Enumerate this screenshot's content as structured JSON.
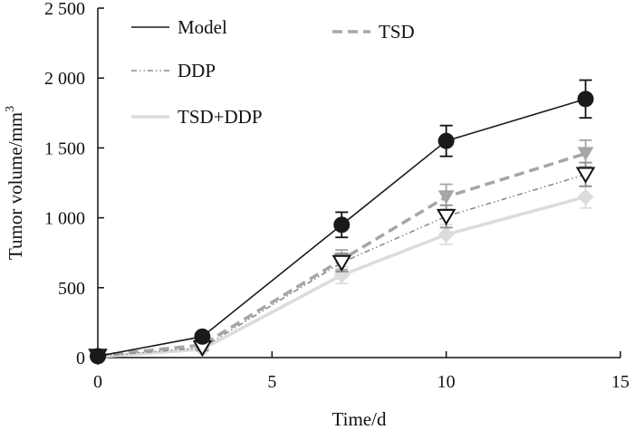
{
  "chart_data": {
    "type": "line",
    "title": "",
    "xlabel": "Time/d",
    "ylabel": "Tumor volume/mm",
    "ylabel_superscript": "3",
    "xlim": [
      0,
      15
    ],
    "ylim": [
      0,
      2500
    ],
    "xticks": [
      0,
      5,
      10,
      15
    ],
    "xtick_labels": [
      "0",
      "5",
      "10",
      "15"
    ],
    "yticks": [
      0,
      500,
      1000,
      1500,
      2000,
      2500
    ],
    "ytick_labels": [
      "0",
      "500",
      "1 000",
      "1 500",
      "2 000",
      "2 500"
    ],
    "grid": false,
    "legend_position": "top-left",
    "series": [
      {
        "name": "Model",
        "x": [
          0,
          3,
          7,
          10,
          14
        ],
        "values": [
          10,
          150,
          950,
          1550,
          1850
        ],
        "errors": [
          15,
          25,
          90,
          110,
          135
        ],
        "color": "#1a1a1a",
        "line_style": "solid",
        "marker": "circle"
      },
      {
        "name": "TSD",
        "x": [
          0,
          3,
          7,
          10,
          14
        ],
        "values": [
          15,
          90,
          700,
          1150,
          1460
        ],
        "errors": [
          15,
          20,
          70,
          90,
          95
        ],
        "color": "#a6a6a6",
        "line_style": "dashed",
        "marker": "triangle-down"
      },
      {
        "name": "DDP",
        "x": [
          0,
          3,
          7,
          10,
          14
        ],
        "values": [
          10,
          70,
          680,
          1010,
          1310
        ],
        "errors": [
          15,
          20,
          65,
          80,
          85
        ],
        "color": "#8c8c8c",
        "line_style": "dashdotdot",
        "marker": "triangle-down-open"
      },
      {
        "name": "TSD+DDP",
        "x": [
          0,
          3,
          7,
          10,
          14
        ],
        "values": [
          5,
          60,
          590,
          880,
          1150
        ],
        "errors": [
          10,
          15,
          60,
          70,
          80
        ],
        "color": "#dcdcdc",
        "line_style": "solid",
        "marker": "diamond"
      }
    ]
  }
}
